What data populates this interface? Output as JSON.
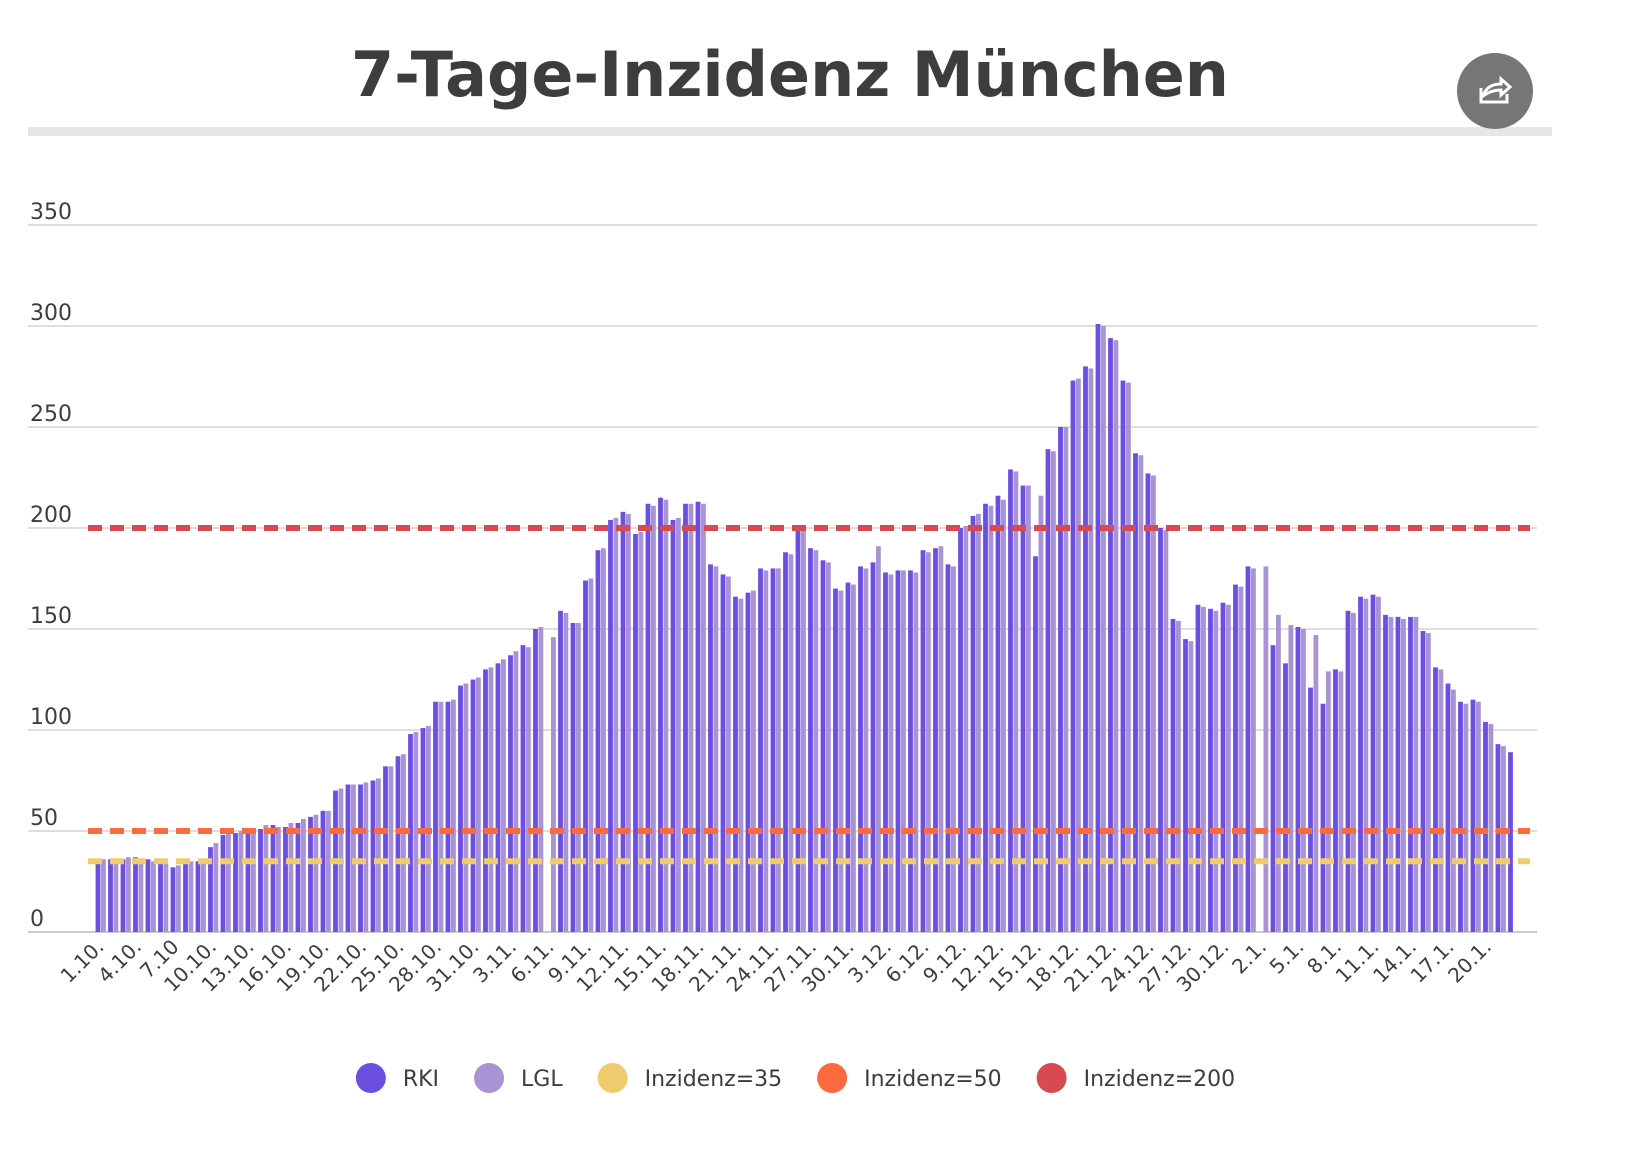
{
  "chart_data": {
    "type": "bar",
    "title": "7-Tage-Inzidenz München",
    "categories": [
      "1.10.",
      null,
      null,
      "4.10.",
      null,
      null,
      "7.10",
      null,
      null,
      "10.10.",
      null,
      null,
      "13.10.",
      null,
      null,
      "16.10.",
      null,
      null,
      "19.10.",
      null,
      null,
      "22.10.",
      null,
      null,
      "25.10.",
      null,
      null,
      "28.10.",
      null,
      null,
      "31.10.",
      null,
      null,
      "3.11.",
      null,
      null,
      "6.11.",
      null,
      null,
      "9.11.",
      null,
      null,
      "12.11.",
      null,
      null,
      "15.11.",
      null,
      null,
      "18.11.",
      null,
      null,
      "21.11.",
      null,
      null,
      "24.11.",
      null,
      null,
      "27.11.",
      null,
      null,
      "30.11.",
      null,
      null,
      "3.12.",
      null,
      null,
      "6.12.",
      null,
      null,
      "9.12.",
      null,
      null,
      "12.12.",
      null,
      null,
      "15.12.",
      null,
      null,
      "18.12.",
      null,
      null,
      "21.12.",
      null,
      null,
      "24.12.",
      null,
      null,
      "27.12.",
      null,
      null,
      "30.12.",
      null,
      null,
      "2.1.",
      null,
      null,
      "5.1.",
      null,
      null,
      "8.1.",
      null,
      null,
      "11.1.",
      null,
      null,
      "14.1.",
      null,
      null,
      "17.1.",
      null,
      null,
      "20.1.",
      null,
      null
    ],
    "series": [
      {
        "name": "RKI",
        "color": "#6b50e0",
        "values": [
          35,
          36,
          36,
          37,
          36,
          35,
          32,
          34,
          35,
          42,
          48,
          49,
          50,
          51,
          53,
          52,
          54,
          57,
          60,
          70,
          73,
          73,
          75,
          82,
          87,
          98,
          101,
          114,
          114,
          122,
          125,
          130,
          133,
          137,
          142,
          150,
          null,
          159,
          153,
          174,
          189,
          204,
          208,
          197,
          212,
          215,
          204,
          212,
          213,
          182,
          177,
          166,
          168,
          180,
          180,
          188,
          200,
          190,
          184,
          170,
          173,
          181,
          183,
          178,
          179,
          179,
          189,
          190,
          182,
          200,
          206,
          212,
          216,
          229,
          221,
          186,
          239,
          250,
          273,
          280,
          301,
          294,
          273,
          237,
          227,
          200,
          155,
          145,
          162,
          160,
          163,
          172,
          181,
          null,
          142,
          133,
          151,
          121,
          113,
          130,
          159,
          166,
          167,
          157,
          156,
          156,
          149,
          131,
          123,
          114,
          115,
          104,
          93,
          89
        ]
      },
      {
        "name": "LGL",
        "color": "#a993d4",
        "values": [
          36,
          36,
          37,
          36,
          35,
          34,
          33,
          35,
          36,
          44,
          49,
          50,
          51,
          53,
          52,
          54,
          56,
          58,
          60,
          71,
          73,
          74,
          76,
          82,
          88,
          99,
          102,
          114,
          115,
          123,
          126,
          131,
          135,
          139,
          141,
          151,
          146,
          158,
          153,
          175,
          190,
          205,
          207,
          198,
          211,
          214,
          205,
          212,
          212,
          181,
          176,
          165,
          169,
          179,
          180,
          187,
          199,
          189,
          183,
          169,
          172,
          180,
          191,
          177,
          179,
          178,
          188,
          191,
          181,
          201,
          207,
          211,
          214,
          228,
          221,
          216,
          238,
          250,
          274,
          279,
          300,
          293,
          272,
          236,
          226,
          199,
          154,
          144,
          161,
          159,
          162,
          171,
          180,
          181,
          157,
          152,
          150,
          147,
          129,
          129,
          158,
          165,
          166,
          156,
          155,
          156,
          148,
          130,
          120,
          113,
          114,
          103,
          92,
          null
        ]
      }
    ],
    "reference_lines": [
      {
        "name": "Inzidenz=35",
        "color": "#f0cc6e",
        "value": 35
      },
      {
        "name": "Inzidenz=50",
        "color": "#fb6a3c",
        "value": 50
      },
      {
        "name": "Inzidenz=200",
        "color": "#d94a50",
        "value": 200
      }
    ],
    "ylim": [
      0,
      350
    ],
    "yticks": [
      0,
      50,
      100,
      150,
      200,
      250,
      300,
      350
    ],
    "grid": true
  }
}
